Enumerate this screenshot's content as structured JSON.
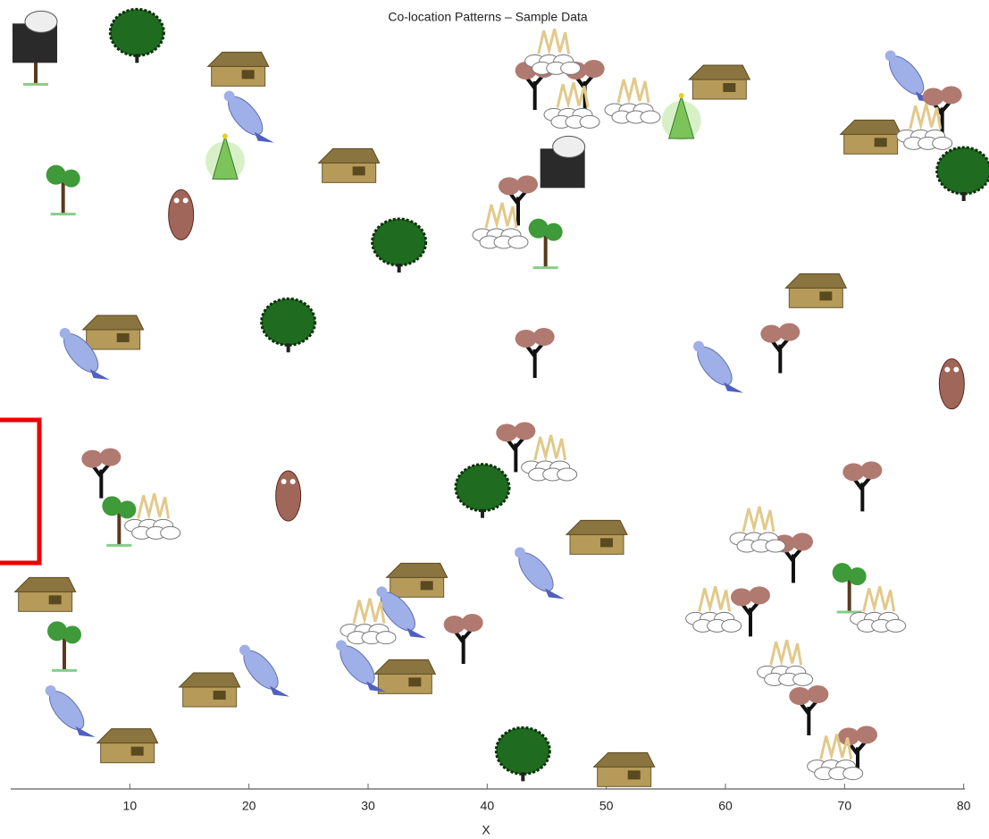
{
  "chart_data": {
    "type": "scatter",
    "title": "Co-location Patterns – Sample Data",
    "x_label": "X",
    "xlim": [
      0,
      80.1
    ],
    "ylim": [
      0,
      66.2
    ],
    "xticks": [
      10,
      20,
      30,
      40,
      50,
      60,
      70,
      80
    ],
    "series": [
      {
        "marker": "house",
        "color": "#b59a5a",
        "x": [
          19.1,
          28.4,
          8.6,
          67.6,
          59.5,
          72.2,
          2.9,
          9.8,
          49.2,
          34.1,
          33.1,
          16.7,
          51.5
        ],
        "y": [
          60.2,
          52.1,
          38.1,
          41.6,
          59.1,
          54.5,
          16.1,
          3.4,
          20.9,
          17.3,
          9.2,
          8.1,
          1.4
        ]
      },
      {
        "marker": "bird",
        "color": "#9fb0e8",
        "x": [
          19.7,
          5.9,
          59.1,
          75.2,
          44.1,
          32.5,
          29.1,
          21.0,
          4.7
        ],
        "y": [
          56.5,
          36.6,
          35.5,
          59.9,
          18.2,
          14.9,
          10.4,
          10.0,
          6.6
        ]
      },
      {
        "marker": "dead-tree",
        "color": "#b07a70",
        "x": [
          44.0,
          48.2,
          42.6,
          44.0,
          64.6,
          78.2,
          42.4,
          7.6,
          71.5,
          65.7,
          62.1,
          38.0,
          67.0,
          71.1
        ],
        "y": [
          59.1,
          59.1,
          49.4,
          36.6,
          37.0,
          56.9,
          28.7,
          26.5,
          25.4,
          19.4,
          14.9,
          12.6,
          6.6,
          3.2
        ]
      },
      {
        "marker": "tree",
        "color": "#3f9a3a",
        "x": [
          2.1,
          4.4,
          44.9,
          9.1,
          70.4,
          4.5
        ],
        "y": [
          61.4,
          50.5,
          46.0,
          22.7,
          17.1,
          12.2
        ]
      },
      {
        "marker": "bush",
        "color": "#1f6b1f",
        "x": [
          10.6,
          80.0,
          32.6,
          23.3,
          39.6,
          43.0
        ],
        "y": [
          63.2,
          51.6,
          45.6,
          38.9,
          25.0,
          2.9
        ]
      },
      {
        "marker": "rocks",
        "color": "#e2c98a",
        "x": [
          45.5,
          47.1,
          52.2,
          41.1,
          45.2,
          11.9,
          62.7,
          72.8,
          59.0,
          30.0,
          65.0,
          69.2,
          76.7
        ],
        "y": [
          61.7,
          57.2,
          57.6,
          47.1,
          27.6,
          22.7,
          21.6,
          14.9,
          14.9,
          13.9,
          10.4,
          2.5,
          55.4
        ]
      },
      {
        "marker": "xmas-tree",
        "color": "#7cc35a",
        "x": [
          18.0,
          56.3
        ],
        "y": [
          52.7,
          56.1
        ]
      },
      {
        "marker": "owl",
        "color": "#a0665a",
        "x": [
          14.3,
          23.3,
          79.0
        ],
        "y": [
          48.2,
          24.6,
          34.0
        ]
      },
      {
        "marker": "eagle",
        "color": "#2a2a2a",
        "x": [
          2.1,
          46.4
        ],
        "y": [
          62.9,
          52.4
        ]
      }
    ]
  }
}
